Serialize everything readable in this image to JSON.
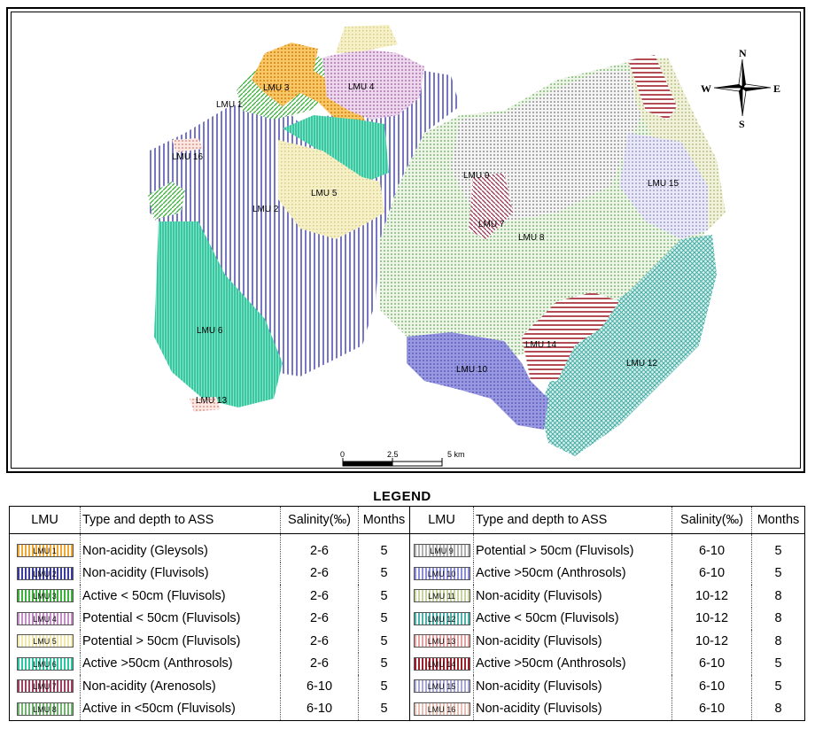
{
  "map": {
    "compass": {
      "n": "N",
      "s": "S",
      "e": "E",
      "w": "W"
    },
    "scale": {
      "labels": [
        "0",
        "2.5",
        "5 km"
      ]
    },
    "labels": {
      "lmu1": "LMU 1",
      "lmu2": "LMU 2",
      "lmu3": "LMU 3",
      "lmu4": "LMU 4",
      "lmu5": "LMU 5",
      "lmu6": "LMU 6",
      "lmu7": "LMU 7",
      "lmu8": "LMU 8",
      "lmu9": "LMU 9",
      "lmu10": "LMU 10",
      "lmu12": "LMU 12",
      "lmu13": "LMU 13",
      "lmu14": "LMU 14",
      "lmu15": "LMU 15",
      "lmu16": "LMU 16"
    }
  },
  "legend": {
    "title": "LEGEND",
    "headers": [
      "LMU",
      "Type and depth to ASS",
      "Salinity(‰)",
      "Months",
      "LMU",
      "Type and depth to ASS",
      "Salinity(‰)",
      "Months"
    ],
    "rows": [
      {
        "left": {
          "code": "LMU 1",
          "type": "Non-acidity (Gleysols)",
          "salinity": "2-6",
          "months": "5",
          "color": "#f0a830"
        },
        "right": {
          "code": "LMU 9",
          "type": "Potential > 50cm (Fluvisols)",
          "salinity": "6-10",
          "months": "5",
          "color": "#b0b0b0"
        }
      },
      {
        "left": {
          "code": "LMU 2",
          "type": "Non-acidity (Fluvisols)",
          "salinity": "2-6",
          "months": "5",
          "color": "#3a3aa0"
        },
        "right": {
          "code": "LMU 10",
          "type": "Active >50cm (Anthrosols)",
          "salinity": "6-10",
          "months": "5",
          "color": "#8c8cdc"
        }
      },
      {
        "left": {
          "code": "LMU 3",
          "type": "Active < 50cm (Fluvisols)",
          "salinity": "2-6",
          "months": "5",
          "color": "#3cb43c"
        },
        "right": {
          "code": "LMU 11",
          "type": "Non-acidity (Fluvisols)",
          "salinity": "10-12",
          "months": "8",
          "color": "#c8d4a0"
        }
      },
      {
        "left": {
          "code": "LMU 4",
          "type": "Potential < 50cm (Fluvisols)",
          "salinity": "2-6",
          "months": "5",
          "color": "#c68cc6"
        },
        "right": {
          "code": "LMU 12",
          "type": "Active < 50cm (Fluvisols)",
          "salinity": "10-12",
          "months": "8",
          "color": "#4ab4aa"
        }
      },
      {
        "left": {
          "code": "LMU 5",
          "type": "Potential > 50cm (Fluvisols)",
          "salinity": "2-6",
          "months": "5",
          "color": "#f0e8a8"
        },
        "right": {
          "code": "LMU 13",
          "type": "Non-acidity (Fluvisols)",
          "salinity": "10-12",
          "months": "8",
          "color": "#e6a0a0"
        }
      },
      {
        "left": {
          "code": "LMU 6",
          "type": "Active >50cm (Anthrosols)",
          "salinity": "2-6",
          "months": "5",
          "color": "#28c8a0"
        },
        "right": {
          "code": "LMU 14",
          "type": "Active >50cm (Anthrosols)",
          "salinity": "6-10",
          "months": "5",
          "color": "#a01e2a"
        }
      },
      {
        "left": {
          "code": "LMU 7",
          "type": "Non-acidity (Arenosols)",
          "salinity": "6-10",
          "months": "5",
          "color": "#a04060"
        },
        "right": {
          "code": "LMU 15",
          "type": "Non-acidity (Fluvisols)",
          "salinity": "6-10",
          "months": "5",
          "color": "#a8a8d8"
        }
      },
      {
        "left": {
          "code": "LMU 8",
          "type": "Active in <50cm (Fluvisols)",
          "salinity": "6-10",
          "months": "5",
          "color": "#70b470"
        },
        "right": {
          "code": "LMU 16",
          "type": "Non-acidity (Fluvisols)",
          "salinity": "6-10",
          "months": "8",
          "color": "#e6c0b4"
        }
      }
    ]
  }
}
